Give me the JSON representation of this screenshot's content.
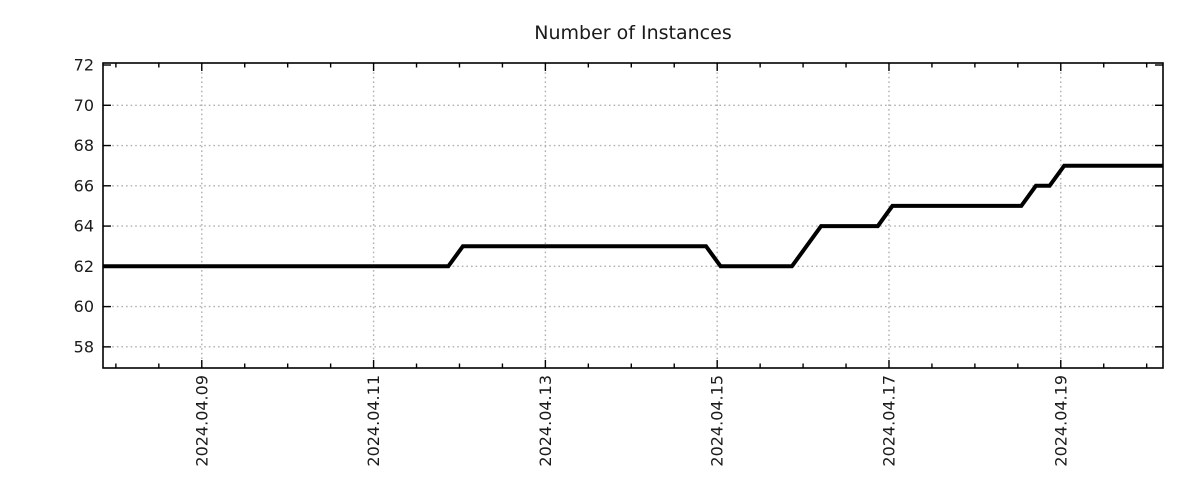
{
  "colors": {
    "background": "#ffffff",
    "line": "#000000",
    "grid": "#b0b0b0",
    "axis_border": "#000000",
    "text": "#1a1a1a"
  },
  "chart_data": {
    "type": "line",
    "title": "Number of Instances",
    "xlabel": "",
    "ylabel": "",
    "legend": null,
    "grid": true,
    "grid_style": "dotted",
    "x_unit": "days relative to 2024.04.09 00:00",
    "xlim": [
      -1.15,
      11.19
    ],
    "ylim": [
      56.95,
      72.1
    ],
    "x_tick_positions": [
      0,
      2,
      4,
      6,
      8,
      10
    ],
    "x_tick_labels": [
      "2024.04.09",
      "2024.04.11",
      "2024.04.13",
      "2024.04.15",
      "2024.04.17",
      "2024.04.19"
    ],
    "x_minor_tick_step": 0.5,
    "x_minor_tick_range": [
      -1.0,
      11.0
    ],
    "y_ticks": [
      58,
      60,
      62,
      64,
      66,
      68,
      70,
      72
    ],
    "series": [
      {
        "name": "instances",
        "color": "#000000",
        "width": 4,
        "points": [
          {
            "t": -1.15,
            "y": 62
          },
          {
            "t": 2.87,
            "y": 62
          },
          {
            "t": 3.04,
            "y": 63
          },
          {
            "t": 5.87,
            "y": 63
          },
          {
            "t": 6.04,
            "y": 62
          },
          {
            "t": 6.87,
            "y": 62
          },
          {
            "t": 7.21,
            "y": 64
          },
          {
            "t": 7.87,
            "y": 64
          },
          {
            "t": 8.04,
            "y": 65
          },
          {
            "t": 9.54,
            "y": 65
          },
          {
            "t": 9.71,
            "y": 66
          },
          {
            "t": 9.87,
            "y": 66
          },
          {
            "t": 10.04,
            "y": 67
          },
          {
            "t": 11.19,
            "y": 67
          }
        ]
      }
    ]
  }
}
